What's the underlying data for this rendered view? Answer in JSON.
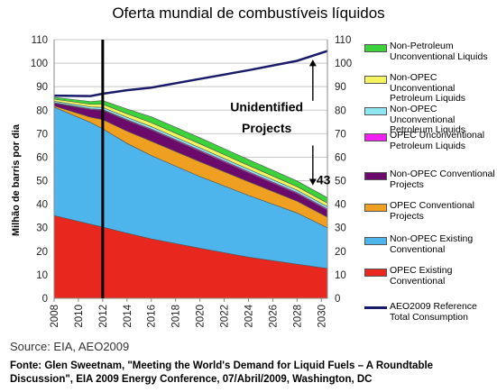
{
  "chart_data": {
    "type": "area",
    "title": "Oferta mundial de combustíveis líquidos",
    "ylabel": "Milhão de barris por dia",
    "xlabel": "",
    "ylim": [
      0,
      110
    ],
    "xlim": [
      2008,
      2030.5
    ],
    "y_ticks": [
      "0",
      "10",
      "20",
      "30",
      "40",
      "50",
      "60",
      "70",
      "80",
      "90",
      "100",
      "110"
    ],
    "x_ticks": [
      "2008",
      "2010",
      "2012",
      "2014",
      "2016",
      "2018",
      "2020",
      "2022",
      "2024",
      "2026",
      "2028",
      "2030"
    ],
    "grid": "horizontal",
    "legend_position": "right",
    "x": [
      2008,
      2011,
      2012,
      2014,
      2016,
      2020,
      2024,
      2028,
      2030.5
    ],
    "stacked_series": [
      {
        "name": "OPEC Existing Conventional",
        "color": "#e8281e",
        "values": [
          35.2,
          31.5,
          30.3,
          27.7,
          25.3,
          21.3,
          17.5,
          14.5,
          12.7
        ]
      },
      {
        "name": "Non-OPEC Existing Conventional",
        "color": "#4db4ec",
        "values": [
          46.1,
          43.3,
          41.8,
          38.2,
          35.4,
          30.5,
          26.3,
          21.8,
          17.3
        ]
      },
      {
        "name": "OPEC Conventional Projects",
        "color": "#f0a020",
        "values": [
          0.5,
          2.2,
          3.9,
          5.2,
          6.1,
          6.3,
          5.8,
          5.0,
          4.5
        ]
      },
      {
        "name": "Non-OPEC Conventional Projects",
        "color": "#6c0a6c",
        "values": [
          1.2,
          3.3,
          4.0,
          4.5,
          4.8,
          4.4,
          3.8,
          3.2,
          3.0
        ]
      },
      {
        "name": "OPEC Unconventional Petroleum Liquids",
        "color": "#f020f0",
        "values": [
          0.2,
          0.3,
          0.3,
          0.4,
          0.4,
          0.5,
          0.5,
          0.5,
          0.5
        ]
      },
      {
        "name": "Non-OPEC Unconventional Petroleum Liquids",
        "color": "#8ee6f0",
        "values": [
          0.6,
          0.8,
          0.9,
          1.0,
          1.0,
          1.0,
          1.0,
          1.0,
          1.0
        ]
      },
      {
        "name": "Non-OPEC Unconventional Petroleum Liquids",
        "color": "#f4f460",
        "values": [
          0.9,
          1.1,
          1.3,
          1.5,
          1.7,
          1.7,
          1.6,
          1.5,
          1.5
        ]
      },
      {
        "name": "Non-Petroleum Unconventional Liquids",
        "color": "#3cd23c",
        "values": [
          0.8,
          1.2,
          1.6,
          2.0,
          2.5,
          2.6,
          2.5,
          2.4,
          2.3
        ]
      }
    ],
    "reference_line": {
      "name": "AEO2009 Reference Total Consumption",
      "color": "#1a1a6a",
      "values": [
        86.2,
        86.0,
        87.0,
        88.5,
        89.6,
        93.3,
        97.0,
        101.0,
        105.2
      ]
    },
    "vertical_marker_x": 2012,
    "annotations": {
      "unidentified_line1": "Unidentified",
      "unidentified_line2": "Projects",
      "gap_value": "43"
    }
  },
  "legend": [
    {
      "label": "Non-Petroleum Unconventional Liquids",
      "color": "#3cd23c",
      "kind": "swatch"
    },
    {
      "label": "Non-OPEC Unconventional Petroleum Liquids",
      "color": "#f4f460",
      "kind": "swatch"
    },
    {
      "label": "Non-OPEC Unconventional Petroleum Liquids",
      "color": "#8ee6f0",
      "kind": "swatch"
    },
    {
      "label": "OPEC Unconventional Petroleum Liquids",
      "color": "#f020f0",
      "kind": "swatch"
    },
    {
      "label": "Non-OPEC Conventional Projects",
      "color": "#6c0a6c",
      "kind": "swatch"
    },
    {
      "label": "OPEC Conventional Projects",
      "color": "#f0a020",
      "kind": "swatch"
    },
    {
      "label": "Non-OPEC Existing Conventional",
      "color": "#4db4ec",
      "kind": "swatch"
    },
    {
      "label": "OPEC Existing Conventional",
      "color": "#e8281e",
      "kind": "swatch"
    },
    {
      "label": "AEO2009 Reference Total Consumption",
      "color": "#1a1a6a",
      "kind": "line"
    }
  ],
  "source": "Source: EIA, AEO2009",
  "footnote": "Fonte: Glen Sweetnam, \"Meeting the World's Demand for Liquid Fuels – A Roundtable Discussion\", EIA 2009 Energy Conference, 07/Abril/2009, Washington, DC"
}
